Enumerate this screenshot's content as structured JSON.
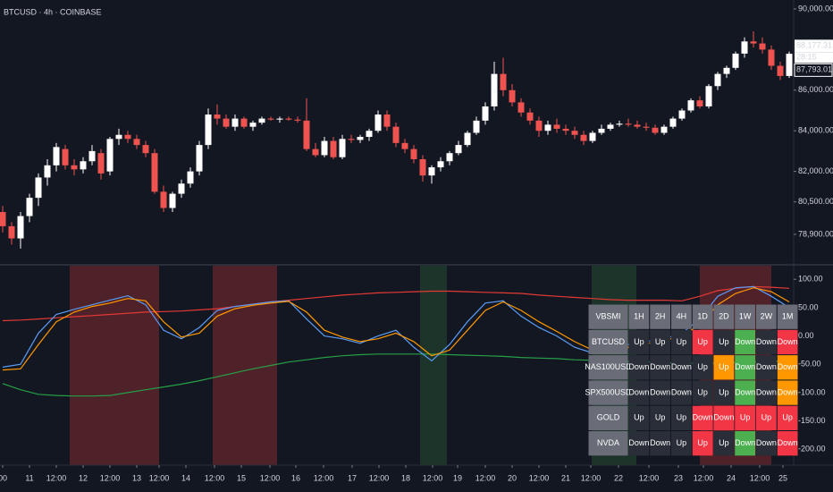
{
  "chart_data": [
    {
      "type": "candlestick",
      "title": "BTCUSD · 4h · COINBASE",
      "up_color": "#ffffff",
      "down_color": "#ef5350",
      "xlim": [
        -0.3,
        88.5
      ],
      "ylim": [
        77446,
        90440
      ],
      "yticks": [
        {
          "value": 90000,
          "label": "90,000.00"
        },
        {
          "value": 86000,
          "label": "86,000.00"
        },
        {
          "value": 84000,
          "label": "84,000.00"
        },
        {
          "value": 82000,
          "label": "82,000.00"
        },
        {
          "value": 80500,
          "label": "80,500.00"
        },
        {
          "value": 78900,
          "label": "78,900.00"
        }
      ],
      "price_marker": {
        "value": 88177.31,
        "label": "88,177.31"
      },
      "countdown": "28:15",
      "last_price": {
        "value": 87793.01,
        "label": "87,793.01"
      },
      "open": [
        80000,
        79300,
        78700,
        79800,
        80700,
        81700,
        82300,
        83100,
        82300,
        82100,
        82500,
        82900,
        82000,
        83600,
        83800,
        83600,
        83300,
        82900,
        81000,
        80200,
        80900,
        81400,
        82000,
        83300,
        84800,
        84600,
        84200,
        84600,
        84200,
        84400,
        84600,
        84550,
        84600,
        84550,
        84500,
        83100,
        82800,
        83500,
        82700,
        83600,
        83550,
        83700,
        84000,
        84800,
        84200,
        83400,
        83100,
        82600,
        81800,
        82200,
        82500,
        82900,
        83300,
        83900,
        84500,
        85200,
        86800,
        86000,
        85400,
        84900,
        84500,
        84000,
        84300,
        84100,
        84000,
        83800,
        83500,
        83900,
        84100,
        84300,
        84350,
        84300,
        84200,
        84150,
        83900,
        84200,
        84600,
        85000,
        85500,
        85200,
        86200,
        86800,
        87100,
        87800,
        88400,
        88300,
        88000,
        87200,
        86700
      ],
      "high": [
        80300,
        79500,
        80000,
        80900,
        81900,
        82600,
        83400,
        83300,
        82600,
        82700,
        83300,
        83100,
        83700,
        84100,
        84000,
        83800,
        83500,
        83100,
        81300,
        81000,
        81600,
        82200,
        83500,
        85100,
        85300,
        84800,
        84800,
        84700,
        84500,
        84700,
        84700,
        84700,
        84700,
        84700,
        85600,
        83400,
        83700,
        83700,
        83800,
        83800,
        83800,
        84100,
        85000,
        85000,
        84400,
        83600,
        83300,
        82800,
        82300,
        82700,
        83000,
        83500,
        84000,
        84700,
        85400,
        87400,
        87600,
        86300,
        85600,
        85100,
        84700,
        84500,
        84600,
        84300,
        84200,
        84000,
        84000,
        84300,
        84400,
        84500,
        84600,
        84500,
        84400,
        84300,
        84300,
        84700,
        85100,
        85600,
        85700,
        86300,
        86900,
        87200,
        87900,
        88600,
        88900,
        88600,
        88200,
        87400,
        87900
      ],
      "low": [
        79000,
        78400,
        78200,
        79500,
        80300,
        81300,
        82000,
        82100,
        81800,
        81900,
        82300,
        81600,
        81800,
        83300,
        83400,
        83100,
        82700,
        80900,
        80000,
        80000,
        80700,
        81200,
        81800,
        83100,
        84300,
        84100,
        84000,
        84100,
        84000,
        84300,
        84500,
        84400,
        84500,
        84400,
        83000,
        82700,
        82700,
        82600,
        82600,
        83400,
        83400,
        83500,
        83900,
        84000,
        83200,
        82900,
        82400,
        81500,
        81400,
        82000,
        82300,
        82800,
        83200,
        83800,
        84300,
        85000,
        85700,
        85200,
        84700,
        84300,
        83700,
        83800,
        83900,
        83800,
        83600,
        83300,
        83400,
        83800,
        84000,
        84200,
        84200,
        84100,
        84000,
        83800,
        83800,
        84100,
        84500,
        84900,
        85100,
        85100,
        86000,
        86600,
        87000,
        87600,
        88100,
        87800,
        87000,
        86500,
        86600
      ],
      "close": [
        79300,
        78700,
        79800,
        80700,
        81700,
        82300,
        83200,
        82300,
        82100,
        82500,
        83000,
        81900,
        83600,
        83800,
        83600,
        83300,
        82900,
        81000,
        80200,
        80900,
        81400,
        82000,
        83300,
        84800,
        84600,
        84200,
        84600,
        84200,
        84400,
        84600,
        84550,
        84600,
        84550,
        84500,
        83100,
        82800,
        83500,
        82700,
        83600,
        83550,
        83700,
        84000,
        84800,
        84200,
        83400,
        83100,
        82600,
        81800,
        82200,
        82500,
        82900,
        83300,
        83900,
        84500,
        85200,
        86800,
        86000,
        85400,
        84900,
        84500,
        84000,
        84300,
        84100,
        84000,
        83800,
        83500,
        83900,
        84100,
        84300,
        84350,
        84300,
        84200,
        84150,
        83900,
        84200,
        84600,
        85000,
        85500,
        85200,
        86200,
        86800,
        87100,
        87800,
        88400,
        88300,
        88000,
        87200,
        86700,
        87793.01
      ]
    },
    {
      "type": "line",
      "xlim": [
        -0.3,
        88.5
      ],
      "ylim": [
        -228,
        124
      ],
      "yticks": [
        {
          "value": 100,
          "label": "100.00"
        },
        {
          "value": 50,
          "label": "50.00"
        },
        {
          "value": 0,
          "label": "0.00"
        },
        {
          "value": -50,
          "label": "-50.00"
        },
        {
          "value": -100,
          "label": "-100.00"
        },
        {
          "value": -150,
          "label": "-150.00"
        },
        {
          "value": -200,
          "label": "-200.00"
        }
      ],
      "xticks": [
        {
          "value": 0,
          "label": "00"
        },
        {
          "value": 3,
          "label": "11"
        },
        {
          "value": 6,
          "label": "12:00"
        },
        {
          "value": 9,
          "label": "12"
        },
        {
          "value": 12,
          "label": "12:00"
        },
        {
          "value": 15,
          "label": "13"
        },
        {
          "value": 17.5,
          "label": "12:00"
        },
        {
          "value": 20.5,
          "label": "14"
        },
        {
          "value": 23.7,
          "label": "12:00"
        },
        {
          "value": 26.7,
          "label": "15"
        },
        {
          "value": 29.9,
          "label": "12:00"
        },
        {
          "value": 32.8,
          "label": "16"
        },
        {
          "value": 35.9,
          "label": "12:00"
        },
        {
          "value": 39.1,
          "label": "17"
        },
        {
          "value": 42.1,
          "label": "12:00"
        },
        {
          "value": 45.1,
          "label": "18"
        },
        {
          "value": 48.1,
          "label": "12:00"
        },
        {
          "value": 50.9,
          "label": "19"
        },
        {
          "value": 54,
          "label": "12:00"
        },
        {
          "value": 57,
          "label": "20"
        },
        {
          "value": 60,
          "label": "12:00"
        },
        {
          "value": 63,
          "label": "21"
        },
        {
          "value": 65.8,
          "label": "12:00"
        },
        {
          "value": 68.9,
          "label": "22"
        },
        {
          "value": 72.3,
          "label": "12:00"
        },
        {
          "value": 75.6,
          "label": "23"
        },
        {
          "value": 78.4,
          "label": "12:00"
        },
        {
          "value": 81.5,
          "label": "24"
        },
        {
          "value": 84.7,
          "label": "12:00"
        },
        {
          "value": 87.3,
          "label": "25"
        }
      ],
      "zones": [
        {
          "start": 7.5,
          "end": 17.5,
          "color": "#5b2329"
        },
        {
          "start": 23.5,
          "end": 30.7,
          "color": "#5b2329"
        },
        {
          "start": 46.7,
          "end": 49.7,
          "color": "#1f3a2a"
        },
        {
          "start": 65.9,
          "end": 70.9,
          "color": "#1f3a2a"
        },
        {
          "start": 78,
          "end": 86,
          "color": "#5b2329"
        }
      ],
      "x": [
        0,
        2,
        4,
        6,
        8,
        10,
        12,
        14,
        16,
        18,
        20,
        22,
        24,
        26,
        28,
        30,
        32,
        34,
        36,
        38,
        40,
        42,
        44,
        46,
        48,
        50,
        52,
        54,
        56,
        58,
        60,
        62,
        64,
        66,
        68,
        70,
        72,
        74,
        76,
        78,
        80,
        82,
        84,
        86,
        88
      ],
      "series": [
        {
          "color": "#26a046",
          "values": [
            -84,
            -95,
            -103,
            -105,
            -106,
            -106,
            -105,
            -100,
            -95,
            -90,
            -85,
            -79,
            -72,
            -65,
            -58,
            -52,
            -46,
            -42,
            -38,
            -35,
            -33,
            -32,
            -32,
            -32,
            -32,
            -33,
            -34,
            -35,
            -36,
            -38,
            -39,
            -40,
            -42,
            -43,
            -44,
            -45,
            -46,
            -47,
            -48,
            -48,
            -48,
            -47,
            -46,
            -45,
            -44
          ]
        },
        {
          "color": "#e53935",
          "values": [
            27,
            28,
            30,
            32,
            34,
            36,
            38,
            40,
            42,
            43,
            44,
            46,
            48,
            52,
            56,
            60,
            63,
            66,
            69,
            72,
            74,
            76,
            77,
            78,
            79,
            79,
            78,
            77,
            76,
            75,
            72,
            70,
            68,
            66,
            64,
            63,
            63,
            63,
            62,
            70,
            80,
            84,
            87,
            86,
            84
          ]
        },
        {
          "color": "#5b9cf6",
          "values": [
            -55,
            -50,
            5,
            38,
            47,
            55,
            63,
            71,
            55,
            10,
            -5,
            15,
            45,
            52,
            56,
            60,
            62,
            30,
            0,
            -5,
            -13,
            0,
            10,
            -20,
            -44,
            -15,
            25,
            58,
            62,
            35,
            15,
            0,
            -20,
            -30,
            -22,
            -15,
            -10,
            -5,
            5,
            30,
            70,
            85,
            87,
            70,
            50
          ]
        },
        {
          "color": "#ff9800",
          "values": [
            -60,
            -58,
            -15,
            25,
            42,
            52,
            58,
            66,
            62,
            25,
            -2,
            5,
            35,
            48,
            54,
            58,
            61,
            42,
            10,
            -2,
            -10,
            -5,
            5,
            -10,
            -35,
            -25,
            10,
            45,
            60,
            45,
            25,
            8,
            -10,
            -25,
            -28,
            -20,
            -14,
            -8,
            0,
            20,
            55,
            75,
            85,
            78,
            60
          ]
        }
      ]
    }
  ],
  "table": {
    "header_color": "#6a6d78",
    "header": [
      "VBSMI",
      "1H",
      "2H",
      "4H",
      "1D",
      "2D",
      "1W",
      "2W",
      "1M"
    ],
    "rows": [
      {
        "name": "BTCUSD",
        "cells": [
          {
            "text": "Up",
            "color": "#2a2e39"
          },
          {
            "text": "Up",
            "color": "#2a2e39"
          },
          {
            "text": "Up",
            "color": "#2a2e39"
          },
          {
            "text": "Up",
            "color": "#f23645"
          },
          {
            "text": "Up",
            "color": "#2a2e39"
          },
          {
            "text": "Down",
            "color": "#4caf50"
          },
          {
            "text": "Down",
            "color": "#2a2e39"
          },
          {
            "text": "Down",
            "color": "#f23645"
          }
        ]
      },
      {
        "name": "NAS100USD",
        "cells": [
          {
            "text": "Down",
            "color": "#2a2e39"
          },
          {
            "text": "Down",
            "color": "#2a2e39"
          },
          {
            "text": "Down",
            "color": "#2a2e39"
          },
          {
            "text": "Up",
            "color": "#2a2e39"
          },
          {
            "text": "Up",
            "color": "#ff9800"
          },
          {
            "text": "Down",
            "color": "#4caf50"
          },
          {
            "text": "Down",
            "color": "#2a2e39"
          },
          {
            "text": "Down",
            "color": "#ff9800"
          }
        ]
      },
      {
        "name": "SPX500USD",
        "cells": [
          {
            "text": "Down",
            "color": "#2a2e39"
          },
          {
            "text": "Down",
            "color": "#2a2e39"
          },
          {
            "text": "Down",
            "color": "#2a2e39"
          },
          {
            "text": "Up",
            "color": "#2a2e39"
          },
          {
            "text": "Up",
            "color": "#2a2e39"
          },
          {
            "text": "Down",
            "color": "#4caf50"
          },
          {
            "text": "Down",
            "color": "#2a2e39"
          },
          {
            "text": "Down",
            "color": "#ff9800"
          }
        ]
      },
      {
        "name": "GOLD",
        "cells": [
          {
            "text": "Up",
            "color": "#2a2e39"
          },
          {
            "text": "Up",
            "color": "#2a2e39"
          },
          {
            "text": "Up",
            "color": "#2a2e39"
          },
          {
            "text": "Down",
            "color": "#f23645"
          },
          {
            "text": "Down",
            "color": "#f23645"
          },
          {
            "text": "Up",
            "color": "#f23645"
          },
          {
            "text": "Up",
            "color": "#f23645"
          },
          {
            "text": "Up",
            "color": "#f23645"
          }
        ]
      },
      {
        "name": "NVDA",
        "cells": [
          {
            "text": "Down",
            "color": "#2a2e39"
          },
          {
            "text": "Down",
            "color": "#2a2e39"
          },
          {
            "text": "Up",
            "color": "#2a2e39"
          },
          {
            "text": "Up",
            "color": "#f23645"
          },
          {
            "text": "Up",
            "color": "#2a2e39"
          },
          {
            "text": "Down",
            "color": "#4caf50"
          },
          {
            "text": "Down",
            "color": "#2a2e39"
          },
          {
            "text": "Down",
            "color": "#f23645"
          }
        ]
      }
    ]
  }
}
